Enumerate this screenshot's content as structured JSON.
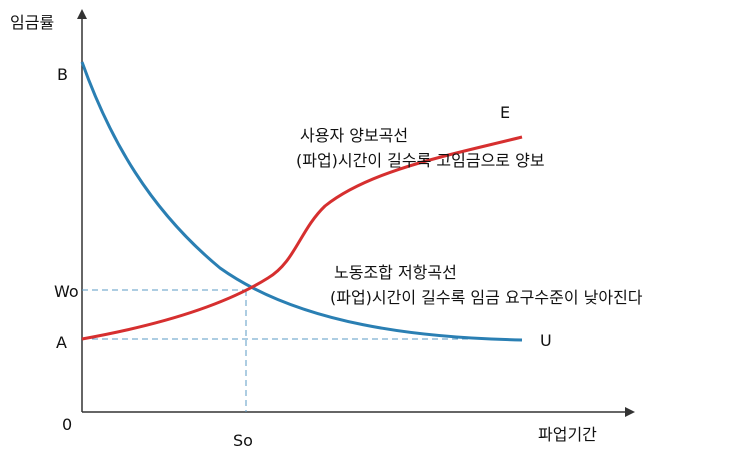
{
  "axes": {
    "y_label": "임금률",
    "x_label": "파업기간",
    "origin_label": "0"
  },
  "y_markers": {
    "b": "B",
    "wo": "Wo",
    "a": "A"
  },
  "x_markers": {
    "so": "So"
  },
  "employer_curve": {
    "end_label": "E",
    "title": "사용자 양보곡선",
    "description": "(파업)시간이 길수록 고임금으로 양보",
    "color": "#d62f2f"
  },
  "union_curve": {
    "end_label": "U",
    "title": "노동조합 저항곡선",
    "description": "(파업)시간이 길수록 임금 요구수준이 낮아진다",
    "color": "#2a7fb3"
  },
  "guide_color": "#5b9bc4"
}
